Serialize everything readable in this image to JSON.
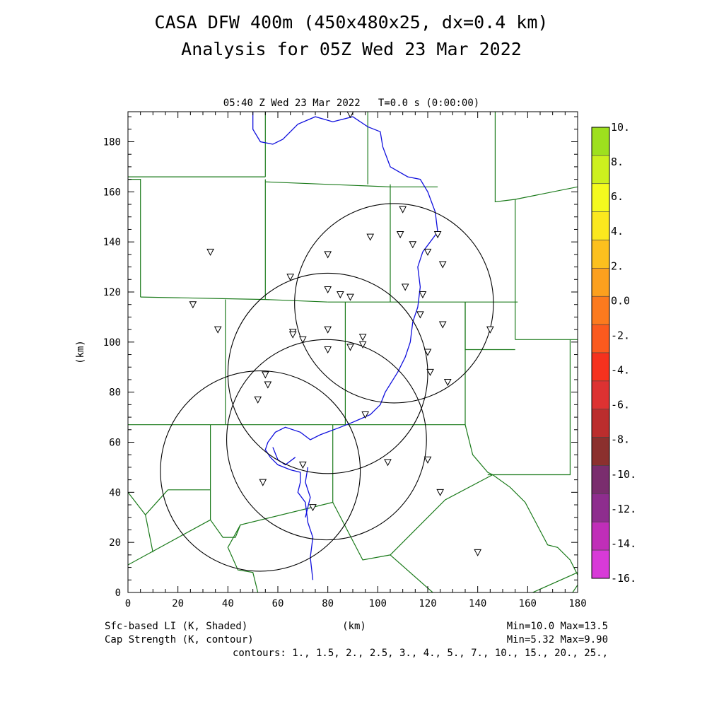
{
  "title": {
    "line1": "CASA DFW 400m (450x480x25, dx=0.4 km)",
    "line2": "Analysis for 05Z Wed 23 Mar 2022"
  },
  "subtitle": "05:40 Z Wed 23 Mar 2022   T=0.0 s (0:00:00)",
  "axes": {
    "x_label": "(km)",
    "y_label": "(km)",
    "x_range": [
      0,
      180
    ],
    "y_range": [
      0,
      192
    ],
    "x_ticks": [
      "0",
      "20",
      "40",
      "60",
      "80",
      "100",
      "120",
      "140",
      "160",
      "180"
    ],
    "y_ticks": [
      "0",
      "20",
      "40",
      "60",
      "80",
      "100",
      "120",
      "140",
      "160",
      "180"
    ]
  },
  "footer": {
    "field1": "Sfc-based LI (K, Shaded)",
    "field2": "Cap Strength (K, contour)",
    "xunit": "(km)",
    "stats1": "Min=10.0 Max=13.5",
    "stats2": "Min=5.32 Max=9.90",
    "contours": "contours: 1., 1.5, 2., 2.5, 3., 4., 5., 7., 10., 15., 20., 25.,"
  },
  "colorbar": {
    "labels": [
      "10.",
      "8.",
      "6.",
      "4.",
      "2.",
      "0.0",
      "-2.",
      "-4.",
      "-6.",
      "-8.",
      "-10.",
      "-12.",
      "-14.",
      "-16."
    ],
    "colors": [
      "#9ee01e",
      "#cdf01e",
      "#f4fa1e",
      "#fbe81e",
      "#fcc01e",
      "#fca01e",
      "#fc7a1e",
      "#fb5a1e",
      "#f5321e",
      "#dd3232",
      "#bb2d2d",
      "#8b302e",
      "#7a2d6e",
      "#8e2d8e",
      "#c02eb8",
      "#d83ad8"
    ]
  },
  "map": {
    "county_color": "#1a7a1a",
    "river_color": "#1010dd",
    "radar_rings": [
      {
        "cx": 106.5,
        "cy": 115.5,
        "r": 39.8
      },
      {
        "cx": 80.0,
        "cy": 87.5,
        "r": 40.0
      },
      {
        "cx": 79.5,
        "cy": 61.0,
        "r": 40.0
      },
      {
        "cx": 53.0,
        "cy": 48.5,
        "r": 40.0
      }
    ],
    "stations": [
      [
        89,
        191
      ],
      [
        110,
        153
      ],
      [
        97,
        142
      ],
      [
        109,
        143
      ],
      [
        114,
        139
      ],
      [
        124,
        143
      ],
      [
        120,
        136
      ],
      [
        126,
        131
      ],
      [
        80,
        135
      ],
      [
        33,
        136
      ],
      [
        65,
        126
      ],
      [
        80,
        121
      ],
      [
        85,
        119
      ],
      [
        89,
        118
      ],
      [
        111,
        122
      ],
      [
        118,
        119
      ],
      [
        26,
        115
      ],
      [
        117,
        111
      ],
      [
        126,
        107
      ],
      [
        145,
        105
      ],
      [
        36,
        105
      ],
      [
        66,
        104
      ],
      [
        66,
        103
      ],
      [
        70,
        101
      ],
      [
        80,
        105
      ],
      [
        94,
        102
      ],
      [
        94,
        99
      ],
      [
        89,
        98
      ],
      [
        80,
        97
      ],
      [
        120,
        96
      ],
      [
        121,
        88
      ],
      [
        128,
        84
      ],
      [
        55,
        87
      ],
      [
        56,
        83
      ],
      [
        52,
        77
      ],
      [
        95,
        71
      ],
      [
        104,
        52
      ],
      [
        120,
        53
      ],
      [
        70,
        51
      ],
      [
        54,
        44
      ],
      [
        125,
        40
      ],
      [
        74,
        34
      ],
      [
        140,
        16
      ]
    ],
    "county_lines": [
      [
        [
          0,
          166
        ],
        [
          55,
          166
        ]
      ],
      [
        [
          0,
          165
        ],
        [
          5,
          165
        ],
        [
          5,
          118
        ]
      ],
      [
        [
          5,
          118
        ],
        [
          55,
          117
        ],
        [
          80,
          116
        ]
      ],
      [
        [
          55,
          166
        ],
        [
          55,
          192
        ]
      ],
      [
        [
          55,
          165
        ],
        [
          55,
          117
        ]
      ],
      [
        [
          55,
          164
        ],
        [
          105,
          162
        ],
        [
          124,
          162
        ]
      ],
      [
        [
          96,
          192
        ],
        [
          96,
          163
        ]
      ],
      [
        [
          105,
          163
        ],
        [
          105,
          116
        ]
      ],
      [
        [
          116,
          116
        ],
        [
          156,
          116
        ]
      ],
      [
        [
          147,
          192
        ],
        [
          147,
          156
        ],
        [
          155,
          157
        ]
      ],
      [
        [
          155,
          157
        ],
        [
          180,
          162
        ]
      ],
      [
        [
          155,
          157
        ],
        [
          155,
          101
        ]
      ],
      [
        [
          155,
          101
        ],
        [
          180,
          101
        ]
      ],
      [
        [
          135,
          116
        ],
        [
          135,
          97
        ],
        [
          155,
          97
        ]
      ],
      [
        [
          80,
          116
        ],
        [
          116,
          116
        ]
      ],
      [
        [
          39,
          117
        ],
        [
          39,
          67
        ]
      ],
      [
        [
          87,
          116
        ],
        [
          87,
          67
        ]
      ],
      [
        [
          0,
          67
        ],
        [
          39,
          67
        ]
      ],
      [
        [
          39,
          67
        ],
        [
          135,
          67
        ],
        [
          135,
          116
        ]
      ],
      [
        [
          33,
          67
        ],
        [
          33,
          29
        ]
      ],
      [
        [
          16,
          41
        ],
        [
          33,
          41
        ]
      ],
      [
        [
          0,
          40
        ],
        [
          7,
          31
        ],
        [
          10,
          16
        ]
      ],
      [
        [
          7,
          31
        ],
        [
          16,
          41
        ]
      ],
      [
        [
          0,
          11
        ],
        [
          33,
          29
        ]
      ],
      [
        [
          33,
          29
        ],
        [
          38,
          22
        ],
        [
          43,
          22
        ],
        [
          45,
          27
        ],
        [
          82,
          36
        ]
      ],
      [
        [
          45,
          27
        ],
        [
          40,
          18
        ],
        [
          44,
          9
        ],
        [
          50,
          8
        ],
        [
          52,
          0
        ]
      ],
      [
        [
          82,
          67
        ],
        [
          82,
          36
        ]
      ],
      [
        [
          82,
          36
        ],
        [
          94,
          13
        ],
        [
          105,
          15
        ],
        [
          127,
          37
        ],
        [
          146,
          47
        ]
      ],
      [
        [
          105,
          15
        ],
        [
          122,
          0
        ]
      ],
      [
        [
          135,
          67
        ],
        [
          138,
          55
        ],
        [
          144,
          48
        ],
        [
          146,
          47
        ],
        [
          153,
          42
        ],
        [
          159,
          36
        ],
        [
          168,
          19
        ],
        [
          172,
          18
        ],
        [
          177,
          13
        ],
        [
          180,
          7
        ]
      ],
      [
        [
          144,
          47
        ],
        [
          177,
          47
        ],
        [
          177,
          101
        ]
      ],
      [
        [
          162,
          0
        ],
        [
          180,
          8
        ]
      ],
      [
        [
          178,
          0
        ],
        [
          180,
          3
        ]
      ]
    ],
    "rivers": [
      [
        [
          50,
          192
        ],
        [
          50,
          185
        ],
        [
          53,
          180
        ],
        [
          58,
          179
        ],
        [
          62,
          181
        ],
        [
          68,
          187
        ],
        [
          75,
          190
        ],
        [
          82,
          188
        ],
        [
          90,
          190
        ],
        [
          96,
          186
        ],
        [
          101,
          184
        ],
        [
          102,
          178
        ],
        [
          105,
          170
        ],
        [
          112,
          166
        ],
        [
          117,
          165
        ],
        [
          120,
          160
        ],
        [
          123,
          152
        ],
        [
          124,
          144
        ],
        [
          121,
          140
        ],
        [
          118,
          136
        ],
        [
          116,
          130
        ],
        [
          117,
          122
        ],
        [
          116,
          114
        ],
        [
          114,
          108
        ],
        [
          113,
          100
        ],
        [
          111,
          94
        ],
        [
          108,
          88
        ],
        [
          103,
          80
        ],
        [
          101,
          75
        ],
        [
          97,
          71
        ],
        [
          90,
          68
        ],
        [
          85,
          66
        ],
        [
          77,
          63
        ],
        [
          73,
          61
        ],
        [
          69,
          64
        ],
        [
          63,
          66
        ],
        [
          59,
          64
        ],
        [
          56,
          60
        ],
        [
          55,
          57
        ],
        [
          57,
          54
        ],
        [
          60,
          51
        ],
        [
          65,
          49
        ],
        [
          69,
          48
        ],
        [
          69,
          44
        ],
        [
          68,
          40
        ],
        [
          71,
          36
        ],
        [
          72,
          28
        ],
        [
          74,
          22
        ],
        [
          73,
          14
        ],
        [
          74,
          5
        ]
      ],
      [
        [
          58,
          58
        ],
        [
          60,
          53
        ],
        [
          63,
          51
        ],
        [
          67,
          54
        ]
      ],
      [
        [
          72,
          50
        ],
        [
          71,
          44
        ],
        [
          73,
          38
        ],
        [
          71,
          30
        ]
      ]
    ]
  }
}
